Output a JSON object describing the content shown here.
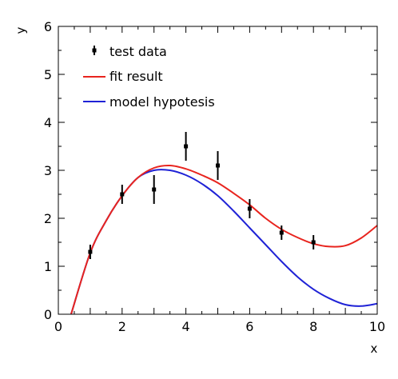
{
  "chart_data": {
    "type": "scatter",
    "title": "",
    "xlabel": "x",
    "ylabel": "y",
    "xlim": [
      0,
      10
    ],
    "ylim": [
      0,
      6
    ],
    "x_ticks": [
      0,
      2,
      4,
      6,
      8,
      10
    ],
    "y_ticks": [
      0,
      1,
      2,
      3,
      4,
      5,
      6
    ],
    "grid": false,
    "legend_position": "top-left",
    "series": [
      {
        "name": "test data",
        "kind": "points-with-errorbars",
        "color": "#000000",
        "x": [
          1,
          2,
          3,
          4,
          5,
          6,
          7,
          8
        ],
        "y": [
          1.3,
          2.5,
          2.6,
          3.5,
          3.1,
          2.2,
          1.7,
          1.5
        ],
        "yerr": [
          0.15,
          0.2,
          0.3,
          0.3,
          0.3,
          0.2,
          0.15,
          0.15
        ]
      },
      {
        "name": "fit result",
        "kind": "line",
        "color": "#e8241e",
        "x": [
          0.4,
          1,
          1.5,
          2,
          2.5,
          3,
          3.5,
          4,
          4.5,
          5,
          5.5,
          6,
          6.5,
          7,
          7.5,
          8,
          8.5,
          9,
          9.5,
          10
        ],
        "y": [
          0.0,
          1.28,
          1.95,
          2.47,
          2.85,
          3.05,
          3.1,
          3.03,
          2.9,
          2.74,
          2.52,
          2.28,
          2.0,
          1.77,
          1.6,
          1.47,
          1.41,
          1.43,
          1.59,
          1.85
        ]
      },
      {
        "name": "model hypotesis",
        "kind": "line",
        "color": "#1f22d6",
        "x": [
          0.4,
          1,
          1.5,
          2,
          2.5,
          3,
          3.5,
          4,
          4.5,
          5,
          5.5,
          6,
          6.5,
          7,
          7.5,
          8,
          8.5,
          9,
          9.5,
          10
        ],
        "y": [
          0.0,
          1.28,
          1.95,
          2.47,
          2.85,
          3.0,
          3.0,
          2.9,
          2.72,
          2.47,
          2.15,
          1.8,
          1.45,
          1.1,
          0.78,
          0.52,
          0.33,
          0.2,
          0.17,
          0.22
        ]
      }
    ]
  }
}
